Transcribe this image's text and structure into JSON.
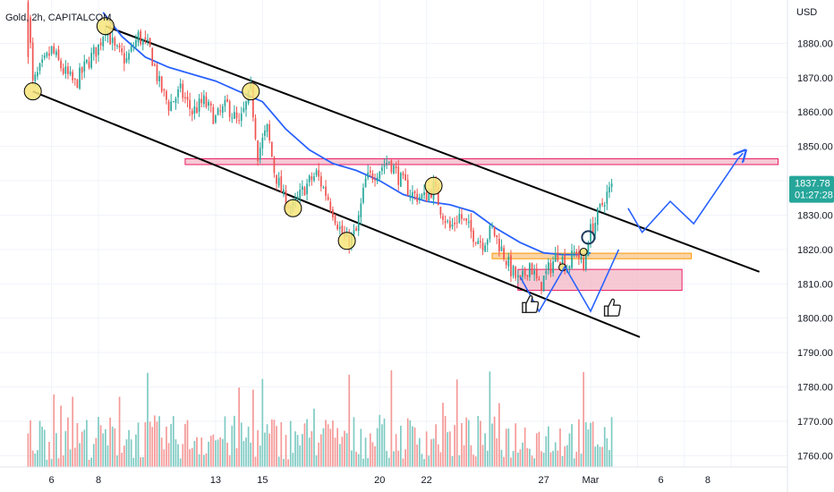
{
  "header": {
    "symbol_title": "Gold, 2h, CAPITALCOM"
  },
  "colors": {
    "bull": "#26a69a",
    "bear": "#ef5350",
    "bull_vol": "#7fcbc3",
    "bear_vol": "#f49a98",
    "ma": "#2962ff",
    "channel": "#000000",
    "zone_pink_fill": "#f3b6c6",
    "zone_pink_stroke": "#e91e63",
    "zone_orange_fill": "#f7c58a",
    "zone_orange_stroke": "#ff9800",
    "circle_fill": "#f7e47a",
    "price_tag": "#26a69a"
  },
  "chart_data": {
    "type": "candlestick",
    "price_axis": {
      "label": "USD",
      "ticks": [
        1880,
        1870,
        1860,
        1850,
        1840,
        1830,
        1820,
        1810,
        1800,
        1790,
        1780,
        1770,
        1760
      ],
      "tick_labels": [
        "1880.00",
        "1870.00",
        "1860.00",
        "1850.00",
        "1840.00",
        "1830.00",
        "1820.00",
        "1810.00",
        "1800.00",
        "1790.00",
        "1780.00",
        "1770.00",
        "1760.00"
      ],
      "ylim": [
        1756.7,
        1892.6
      ]
    },
    "time_axis": {
      "ticks": [
        6,
        8,
        13,
        15,
        20,
        22,
        27,
        29,
        31,
        33,
        35
      ],
      "tick_labels": [
        "6",
        "8",
        "13",
        "15",
        "20",
        "22",
        "27",
        "Mar",
        "6",
        "8",
        ""
      ],
      "tick_text_positions": [
        6,
        8,
        13,
        15,
        20,
        22,
        27,
        29,
        32,
        34
      ],
      "xlim": [
        3.8,
        37.4
      ]
    },
    "current_price": {
      "value": 1837.78,
      "label": "1837.78",
      "countdown": "01:27:28"
    },
    "candles_path": [
      [
        5.0,
        1890
      ],
      [
        5.2,
        1868
      ],
      [
        5.5,
        1872
      ],
      [
        6.0,
        1878
      ],
      [
        6.5,
        1872
      ],
      [
        7.0,
        1868
      ],
      [
        7.5,
        1874
      ],
      [
        8.0,
        1879
      ],
      [
        8.3,
        1885
      ],
      [
        8.7,
        1878
      ],
      [
        9.2,
        1875
      ],
      [
        9.7,
        1882
      ],
      [
        10.2,
        1878
      ],
      [
        10.6,
        1868
      ],
      [
        11.0,
        1862
      ],
      [
        11.5,
        1866
      ],
      [
        12.0,
        1860
      ],
      [
        12.5,
        1863
      ],
      [
        13.0,
        1858
      ],
      [
        13.5,
        1862
      ],
      [
        14.0,
        1856
      ],
      [
        14.5,
        1866
      ],
      [
        14.8,
        1848
      ],
      [
        15.2,
        1855
      ],
      [
        15.5,
        1843
      ],
      [
        15.9,
        1835
      ],
      [
        16.3,
        1832
      ],
      [
        16.8,
        1838
      ],
      [
        17.3,
        1842
      ],
      [
        17.8,
        1835
      ],
      [
        18.3,
        1826
      ],
      [
        18.6,
        1822
      ],
      [
        19.0,
        1825
      ],
      [
        19.4,
        1840
      ],
      [
        19.9,
        1843
      ],
      [
        20.4,
        1846
      ],
      [
        20.9,
        1840
      ],
      [
        21.4,
        1836
      ],
      [
        21.9,
        1835
      ],
      [
        22.3,
        1838
      ],
      [
        22.6,
        1832
      ],
      [
        23.0,
        1826
      ],
      [
        23.4,
        1830
      ],
      [
        23.9,
        1825
      ],
      [
        24.4,
        1822
      ],
      [
        24.8,
        1826
      ],
      [
        25.2,
        1820
      ],
      [
        25.6,
        1814
      ],
      [
        26.0,
        1810
      ],
      [
        26.4,
        1816
      ],
      [
        26.8,
        1809
      ],
      [
        27.2,
        1814
      ],
      [
        27.6,
        1819
      ],
      [
        28.0,
        1815
      ],
      [
        28.4,
        1820
      ],
      [
        28.7,
        1814
      ],
      [
        28.9,
        1824
      ],
      [
        29.2,
        1828
      ],
      [
        29.6,
        1835
      ],
      [
        29.9,
        1838
      ]
    ],
    "volume_note": "volume histogram bars (unitless) at bottom of pane",
    "moving_average": [
      [
        8.2,
        1889
      ],
      [
        9.0,
        1882
      ],
      [
        10.0,
        1876
      ],
      [
        11.0,
        1873
      ],
      [
        12.0,
        1871
      ],
      [
        13.0,
        1869
      ],
      [
        14.0,
        1866
      ],
      [
        15.0,
        1863
      ],
      [
        16.0,
        1855
      ],
      [
        17.0,
        1849
      ],
      [
        18.0,
        1845
      ],
      [
        19.0,
        1843
      ],
      [
        20.0,
        1840
      ],
      [
        21.0,
        1836
      ],
      [
        22.0,
        1834
      ],
      [
        23.0,
        1833
      ],
      [
        24.0,
        1831
      ],
      [
        25.0,
        1826
      ],
      [
        26.0,
        1822
      ],
      [
        27.0,
        1819
      ],
      [
        27.8,
        1818.5
      ],
      [
        28.5,
        1818.5
      ],
      [
        29.0,
        1819
      ]
    ],
    "channel_lines": [
      {
        "name": "upper",
        "from": [
          8.3,
          1885
        ],
        "to": [
          36.2,
          1813.5
        ]
      },
      {
        "name": "lower",
        "from": [
          5.2,
          1866
        ],
        "to": [
          31.1,
          1794.5
        ]
      }
    ],
    "zones": [
      {
        "name": "resistance",
        "style": "pink",
        "x1": 11.7,
        "x2": 37.0,
        "y1": 1844.7,
        "y2": 1846.4
      },
      {
        "name": "support",
        "style": "orange",
        "x1": 24.8,
        "x2": 33.3,
        "y1": 1817.3,
        "y2": 1818.9
      },
      {
        "name": "demand",
        "style": "pink",
        "x1": 25.9,
        "x2": 32.9,
        "y1": 1808.1,
        "y2": 1814.2
      }
    ],
    "touch_points": [
      [
        5.2,
        1866
      ],
      [
        8.3,
        1885
      ],
      [
        14.5,
        1866
      ],
      [
        16.3,
        1832
      ],
      [
        18.6,
        1822.5
      ],
      [
        22.3,
        1838.5
      ],
      [
        28.7,
        1819.3
      ],
      [
        27.8,
        1814.8
      ]
    ],
    "pattern_path": [
      [
        26.0,
        1812
      ],
      [
        26.8,
        1802
      ],
      [
        27.9,
        1815
      ],
      [
        29.0,
        1802
      ],
      [
        30.2,
        1820
      ]
    ],
    "projection_path": [
      [
        30.6,
        1832
      ],
      [
        31.2,
        1825
      ],
      [
        32.4,
        1834
      ],
      [
        33.4,
        1827.5
      ],
      [
        35.3,
        1846.5
      ],
      [
        35.5,
        1848
      ]
    ],
    "thumbs_up": [
      [
        26.4,
        1804
      ],
      [
        29.9,
        1803
      ]
    ]
  }
}
